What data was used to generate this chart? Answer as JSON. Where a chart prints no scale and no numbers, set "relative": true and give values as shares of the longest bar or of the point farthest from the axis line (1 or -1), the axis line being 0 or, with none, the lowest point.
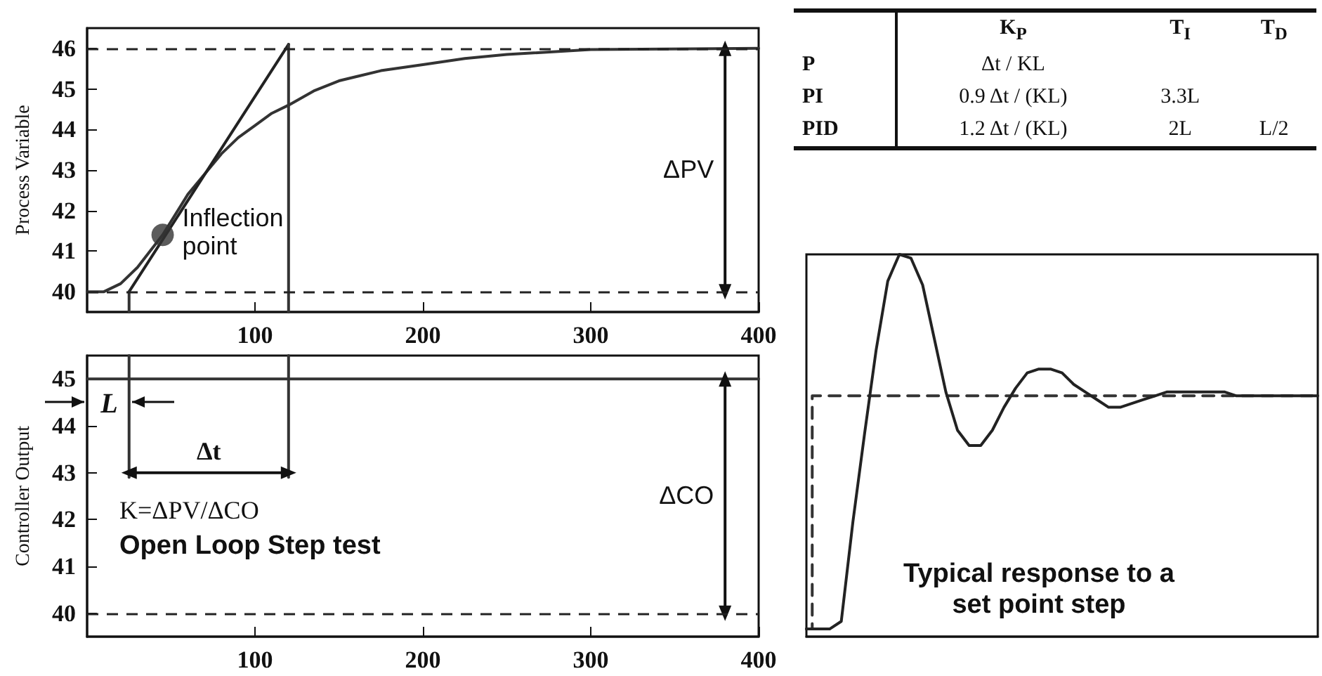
{
  "chart_data": [
    {
      "type": "line",
      "ylabel": "Process Variable",
      "xlim": [
        0,
        400
      ],
      "xticks": [
        100,
        200,
        300,
        400
      ],
      "ylim": [
        39.5,
        46.5
      ],
      "yticks": [
        40,
        41,
        42,
        43,
        44,
        45,
        46
      ],
      "marker": "none",
      "grid": false,
      "series": [
        {
          "color": "#333333",
          "x": [
            0,
            10,
            20,
            30,
            45,
            60,
            70,
            80,
            90,
            100,
            110,
            120,
            135,
            150,
            175,
            200,
            225,
            250,
            300,
            400
          ],
          "values": [
            40,
            40,
            40.2,
            40.6,
            41.4,
            42.4,
            42.9,
            43.4,
            43.8,
            44.1,
            44.4,
            44.6,
            44.95,
            45.2,
            45.45,
            45.6,
            45.75,
            45.85,
            45.97,
            46
          ]
        },
        {
          "color": "#222222",
          "x": [
            25,
            120
          ],
          "values": [
            40,
            46.1
          ]
        },
        {
          "color": "#333333",
          "x": [
            120,
            120
          ],
          "values": [
            39.5,
            46.1
          ]
        },
        {
          "color": "#333333",
          "x": [
            25,
            25
          ],
          "values": [
            39.5,
            40
          ]
        },
        {
          "type": "scatter",
          "marker": "circle",
          "color": "#333333",
          "x": [
            45
          ],
          "values": [
            41.4
          ]
        },
        {
          "marker": "triangle",
          "color": "#111111",
          "x": [
            380,
            380
          ],
          "values": [
            40,
            46
          ]
        }
      ],
      "ref_lines": [
        {
          "axis": "y",
          "value": 40,
          "line_style": "dashed",
          "color": "#222222"
        },
        {
          "axis": "y",
          "value": 46,
          "line_style": "dashed",
          "color": "#222222"
        }
      ],
      "annotations": [
        {
          "text": "Inflection point",
          "x": 45,
          "y": 41.4
        },
        {
          "text": "ΔPV",
          "x": 380,
          "y": 43
        }
      ]
    },
    {
      "type": "line",
      "ylabel": "Controller Output",
      "xlim": [
        0,
        400
      ],
      "xticks": [
        100,
        200,
        300,
        400
      ],
      "ylim": [
        39.5,
        45.5
      ],
      "yticks": [
        40,
        41,
        42,
        43,
        44,
        45
      ],
      "marker": "none",
      "grid": false,
      "series": [
        {
          "color": "#333333",
          "x": [
            0,
            400
          ],
          "values": [
            45,
            45
          ]
        },
        {
          "color": "#333333",
          "x": [
            25,
            25
          ],
          "values": [
            45.5,
            42.9
          ]
        },
        {
          "color": "#333333",
          "x": [
            120,
            120
          ],
          "values": [
            45.5,
            42.9
          ]
        },
        {
          "marker": "triangle",
          "color": "#111111",
          "x": [
            25,
            120
          ],
          "values": [
            43,
            43
          ]
        },
        {
          "marker": "triangle",
          "color": "#111111",
          "x": [
            380,
            380
          ],
          "values": [
            40,
            45
          ]
        }
      ],
      "ref_lines": [
        {
          "axis": "y",
          "value": 40,
          "line_style": "dashed",
          "color": "#222222"
        }
      ],
      "annotations": [
        {
          "text": "L",
          "x": 25,
          "y": 44.5
        },
        {
          "text": "Δt",
          "x": 72.5,
          "y": 43
        },
        {
          "text": "ΔCO",
          "x": 380,
          "y": 42.5
        },
        "K=ΔPV/ΔCO",
        "Open Loop Step test"
      ]
    },
    {
      "type": "other",
      "categories": [
        "K$_{P}$",
        "T$_{I}$",
        "T$_{D}$"
      ],
      "y_categories": [
        "P",
        "PI",
        "PID"
      ],
      "cell_labels": [
        [
          "Δt / KL",
          null,
          null
        ],
        [
          "0.9 Δt / (KL)",
          "3.3L",
          null
        ],
        [
          "1.2 Δt / (KL)",
          "2L",
          "L/2"
        ]
      ]
    },
    {
      "type": "line",
      "relative": true,
      "marker": "none",
      "categories": [
        null,
        null,
        null,
        null,
        null,
        null,
        null,
        null,
        null,
        null,
        null,
        null,
        null,
        null,
        null,
        null,
        null,
        null,
        null,
        null,
        null,
        null,
        null,
        null,
        null,
        null,
        null,
        null,
        null,
        null,
        null,
        null,
        null,
        null,
        null,
        null,
        null,
        null,
        null,
        null,
        null,
        null,
        null,
        null,
        null
      ],
      "series": [
        {
          "type": "step",
          "line_style": "dashed",
          "color": "#333333",
          "values": [
            0.02,
            0.63,
            0.63,
            0.63,
            0.63,
            0.63,
            0.63,
            0.63,
            0.63,
            0.63,
            0.63,
            0.63,
            0.63,
            0.63,
            0.63,
            0.63,
            0.63,
            0.63,
            0.63,
            0.63,
            0.63,
            0.63,
            0.63,
            0.63,
            0.63,
            0.63,
            0.63,
            0.63,
            0.63,
            0.63,
            0.63,
            0.63,
            0.63,
            0.63,
            0.63,
            0.63,
            0.63,
            0.63,
            0.63,
            0.63,
            0.63,
            0.63,
            0.63,
            0.63,
            0.63
          ]
        },
        {
          "color": "#222222",
          "values": [
            0.02,
            0.02,
            0.02,
            0.04,
            0.3,
            0.53,
            0.75,
            0.93,
            1,
            0.99,
            0.92,
            0.78,
            0.64,
            0.54,
            0.5,
            0.5,
            0.54,
            0.6,
            0.65,
            0.69,
            0.7,
            0.7,
            0.69,
            0.66,
            0.64,
            0.62,
            0.6,
            0.6,
            0.61,
            0.62,
            0.63,
            0.64,
            0.64,
            0.64,
            0.64,
            0.64,
            0.64,
            0.63,
            0.63,
            0.63,
            0.63,
            0.63,
            0.63,
            0.63,
            0.63
          ]
        }
      ],
      "annotations": [
        "Typical response to a set point step"
      ]
    }
  ]
}
